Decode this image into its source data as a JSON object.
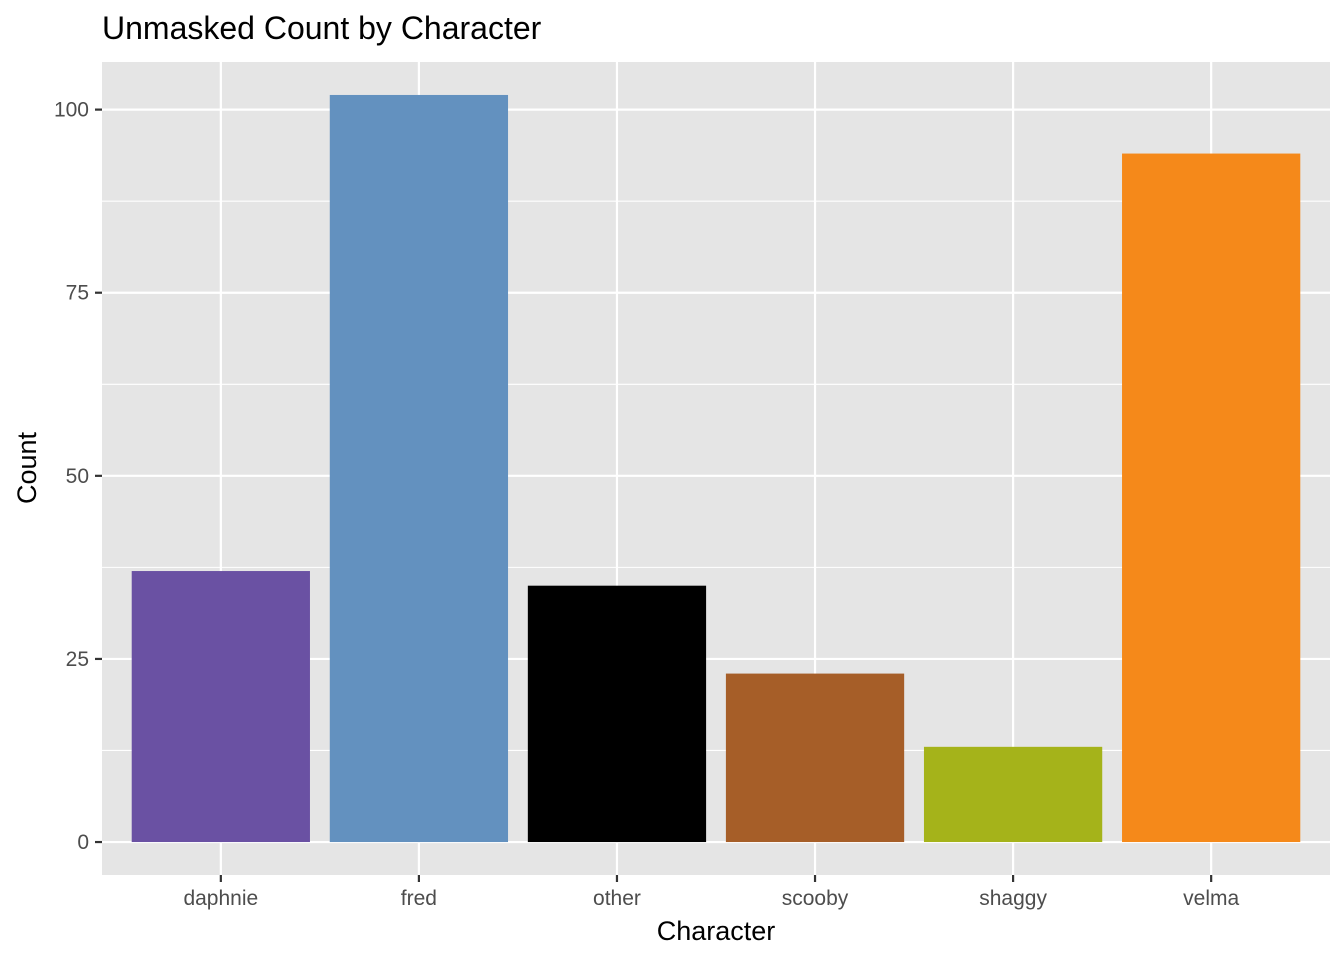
{
  "chart_data": {
    "type": "bar",
    "title": "Unmasked Count by Character",
    "xlabel": "Character",
    "ylabel": "Count",
    "categories": [
      "daphnie",
      "fred",
      "other",
      "scooby",
      "shaggy",
      "velma"
    ],
    "values": [
      37,
      102,
      35,
      23,
      13,
      94
    ],
    "colors": [
      "#6a51a3",
      "#6391bf",
      "#000000",
      "#a65e28",
      "#a5b31a",
      "#f5891a"
    ],
    "ylim": [
      -4.5,
      106.5
    ],
    "yticks": [
      0,
      25,
      50,
      75,
      100
    ],
    "grid": true,
    "panel_background": "#e5e5e5",
    "grid_color": "#ffffff",
    "legend": "none"
  }
}
